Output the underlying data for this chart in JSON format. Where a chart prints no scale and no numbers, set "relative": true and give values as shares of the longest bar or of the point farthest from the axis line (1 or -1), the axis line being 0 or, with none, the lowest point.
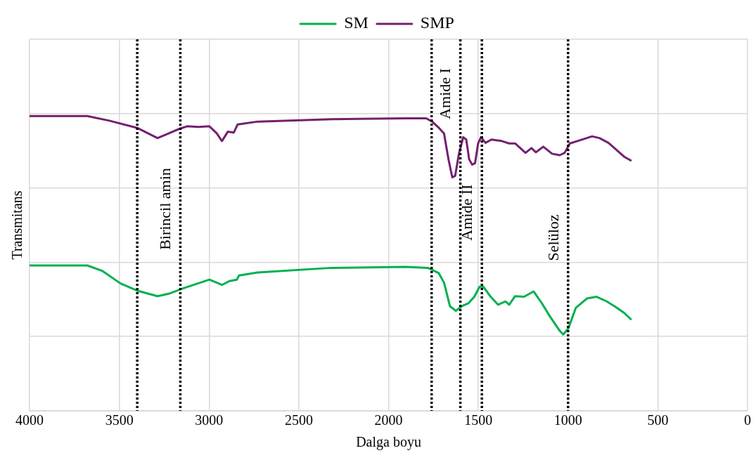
{
  "chart_data": {
    "type": "line",
    "relative": true,
    "xlabel": "Dalga boyu",
    "ylabel": "Transmitans",
    "xlim": [
      4000,
      0
    ],
    "xticks": [
      4000,
      3500,
      3000,
      2500,
      2000,
      1500,
      1000,
      500,
      0
    ],
    "grid": true,
    "legend": "top",
    "marker": "none",
    "line_style": "solid",
    "tick_labels": "x",
    "series": [
      {
        "name": "SM",
        "color": "#00b050",
        "x": [
          4000,
          3678,
          3596,
          3493,
          3402,
          3287,
          3225,
          3142,
          2998,
          2928,
          2887,
          2845,
          2833,
          2730,
          2318,
          1905,
          1781,
          1720,
          1691,
          1658,
          1625,
          1592,
          1555,
          1522,
          1493,
          1472,
          1431,
          1390,
          1348,
          1328,
          1295,
          1245,
          1192,
          1146,
          1101,
          1047,
          1027,
          998,
          957,
          895,
          841,
          784,
          734,
          685,
          647
        ],
        "values": [
          0.493,
          0.493,
          0.475,
          0.432,
          0.408,
          0.389,
          0.397,
          0.416,
          0.445,
          0.427,
          0.44,
          0.445,
          0.459,
          0.469,
          0.485,
          0.488,
          0.485,
          0.467,
          0.435,
          0.355,
          0.339,
          0.355,
          0.365,
          0.387,
          0.421,
          0.421,
          0.387,
          0.36,
          0.371,
          0.36,
          0.389,
          0.387,
          0.405,
          0.365,
          0.32,
          0.272,
          0.259,
          0.28,
          0.349,
          0.381,
          0.387,
          0.371,
          0.352,
          0.331,
          0.309
        ]
      },
      {
        "name": "SMP",
        "color": "#74206f",
        "x": [
          4000,
          3678,
          3555,
          3402,
          3287,
          3245,
          3163,
          3122,
          3060,
          2998,
          2957,
          2928,
          2895,
          2862,
          2841,
          2730,
          2318,
          1905,
          1790,
          1757,
          1720,
          1691,
          1666,
          1645,
          1629,
          1608,
          1584,
          1567,
          1551,
          1534,
          1518,
          1501,
          1485,
          1460,
          1427,
          1369,
          1328,
          1295,
          1237,
          1204,
          1179,
          1138,
          1089,
          1047,
          1019,
          990,
          948,
          866,
          825,
          775,
          726,
          685,
          647
        ],
        "values": [
          1.0,
          1.0,
          0.984,
          0.96,
          0.925,
          0.936,
          0.957,
          0.965,
          0.963,
          0.965,
          0.941,
          0.915,
          0.947,
          0.944,
          0.971,
          0.981,
          0.989,
          0.992,
          0.992,
          0.981,
          0.96,
          0.941,
          0.853,
          0.792,
          0.797,
          0.872,
          0.928,
          0.92,
          0.853,
          0.835,
          0.84,
          0.907,
          0.928,
          0.909,
          0.92,
          0.915,
          0.907,
          0.907,
          0.875,
          0.891,
          0.877,
          0.896,
          0.872,
          0.867,
          0.875,
          0.907,
          0.915,
          0.931,
          0.925,
          0.909,
          0.883,
          0.861,
          0.848
        ]
      }
    ],
    "ref_lines": [
      {
        "axis": "x",
        "value": 3400,
        "color": "#000000",
        "line_style": "dotted"
      },
      {
        "axis": "x",
        "value": 3160,
        "color": "#000000",
        "line_style": "dotted",
        "label": "Birincil amin"
      },
      {
        "axis": "x",
        "value": 1760,
        "color": "#000000",
        "line_style": "dotted"
      },
      {
        "axis": "x",
        "value": 1600,
        "color": "#000000",
        "line_style": "dotted",
        "label": "Amide I"
      },
      {
        "axis": "x",
        "value": 1480,
        "color": "#000000",
        "line_style": "dotted",
        "label": "Amide II"
      },
      {
        "axis": "x",
        "value": 1000,
        "color": "#000000",
        "line_style": "dotted",
        "label": "Selüloz"
      }
    ]
  }
}
